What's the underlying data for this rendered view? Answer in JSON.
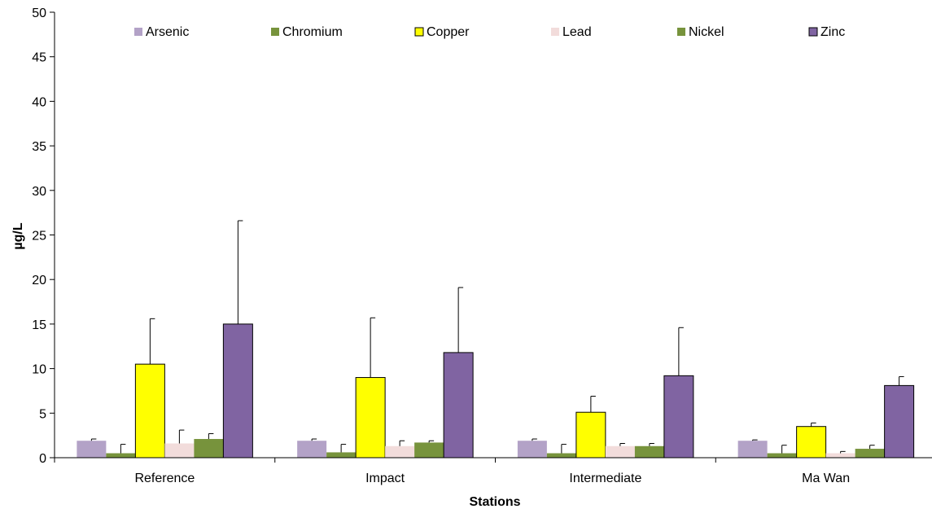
{
  "chart_data": {
    "type": "bar",
    "title": "",
    "xlabel": "Stations",
    "ylabel": "µg/L",
    "ylim": [
      0,
      50
    ],
    "yticks": [
      0,
      5,
      10,
      15,
      20,
      25,
      30,
      35,
      40,
      45,
      50
    ],
    "categories": [
      "Reference",
      "Impact",
      "Intermediate",
      "Ma Wan"
    ],
    "grid": false,
    "legend_position": "top",
    "series": [
      {
        "name": "Arsenic",
        "color": "#B3A2C7",
        "values": [
          1.9,
          1.9,
          1.9,
          1.9
        ],
        "error": [
          0.2,
          0.2,
          0.2,
          0.1
        ]
      },
      {
        "name": "Chromium",
        "color": "#77933C",
        "values": [
          0.5,
          0.6,
          0.5,
          0.5
        ],
        "error": [
          1.0,
          0.9,
          1.0,
          0.9
        ]
      },
      {
        "name": "Copper",
        "color": "#FFFF00",
        "values": [
          10.5,
          9.0,
          5.1,
          3.5
        ],
        "error": [
          5.1,
          6.7,
          1.8,
          0.4
        ]
      },
      {
        "name": "Lead",
        "color": "#F2DCDB",
        "values": [
          1.6,
          1.3,
          1.3,
          0.5
        ],
        "error": [
          1.5,
          0.6,
          0.3,
          0.2
        ]
      },
      {
        "name": "Nickel",
        "color": "#77933C",
        "values": [
          2.1,
          1.7,
          1.3,
          1.0
        ],
        "error": [
          0.6,
          0.2,
          0.3,
          0.4
        ]
      },
      {
        "name": "Zinc",
        "color": "#8064A2",
        "values": [
          15.0,
          11.8,
          9.2,
          8.1
        ],
        "error": [
          11.6,
          7.3,
          5.4,
          1.0
        ]
      }
    ]
  }
}
